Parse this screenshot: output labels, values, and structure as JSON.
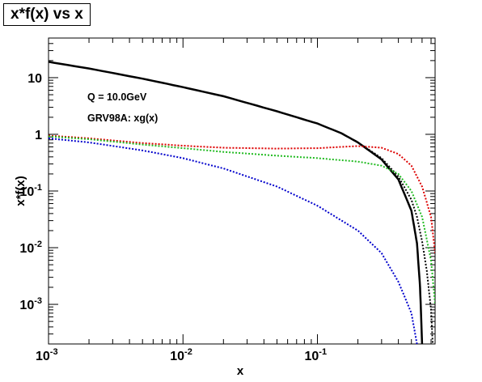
{
  "chart_data": {
    "type": "line",
    "title": "x*f(x) vs x",
    "xlabel": "x",
    "ylabel": "x*f(x)",
    "xscale": "log",
    "yscale": "log",
    "xlim": [
      0.001,
      0.75
    ],
    "ylim": [
      0.0002,
      50
    ],
    "grid": false,
    "legend": "none",
    "x_ticks": [
      {
        "base": "10",
        "exp": "-3",
        "value": 0.001
      },
      {
        "base": "10",
        "exp": "-2",
        "value": 0.01
      },
      {
        "base": "10",
        "exp": "-1",
        "value": 0.1
      }
    ],
    "y_ticks": [
      {
        "base": "10",
        "exp": "-3",
        "value": 0.001
      },
      {
        "base": "10",
        "exp": "-2",
        "value": 0.01
      },
      {
        "base": "10",
        "exp": "-1",
        "value": 0.1
      },
      {
        "base": "1",
        "exp": "",
        "value": 1
      },
      {
        "base": "10",
        "exp": "",
        "value": 10
      }
    ],
    "annotations": [
      "Q = 10.0GeV",
      "GRV98A: xg(x)"
    ],
    "series": [
      {
        "color": "#000000",
        "style": "solid",
        "points": [
          [
            0.001,
            19
          ],
          [
            0.002,
            14.5
          ],
          [
            0.005,
            9.6
          ],
          [
            0.01,
            6.8
          ],
          [
            0.02,
            4.7
          ],
          [
            0.05,
            2.55
          ],
          [
            0.1,
            1.55
          ],
          [
            0.15,
            1.05
          ],
          [
            0.2,
            0.72
          ],
          [
            0.3,
            0.36
          ],
          [
            0.4,
            0.16
          ],
          [
            0.5,
            0.045
          ],
          [
            0.55,
            0.012
          ],
          [
            0.58,
            0.002
          ],
          [
            0.6,
            0.0002
          ]
        ]
      },
      {
        "color": "#000000",
        "style": "dotted",
        "points": [
          [
            0.2,
            0.72
          ],
          [
            0.3,
            0.38
          ],
          [
            0.4,
            0.18
          ],
          [
            0.5,
            0.07
          ],
          [
            0.55,
            0.035
          ],
          [
            0.6,
            0.013
          ],
          [
            0.65,
            0.004
          ],
          [
            0.7,
            0.0008
          ],
          [
            0.72,
            0.0002
          ]
        ]
      },
      {
        "color": "#dd0000",
        "style": "dotted",
        "points": [
          [
            0.001,
            0.95
          ],
          [
            0.002,
            0.85
          ],
          [
            0.005,
            0.7
          ],
          [
            0.01,
            0.63
          ],
          [
            0.02,
            0.58
          ],
          [
            0.05,
            0.56
          ],
          [
            0.1,
            0.57
          ],
          [
            0.15,
            0.6
          ],
          [
            0.2,
            0.62
          ],
          [
            0.3,
            0.58
          ],
          [
            0.4,
            0.45
          ],
          [
            0.5,
            0.28
          ],
          [
            0.6,
            0.12
          ],
          [
            0.7,
            0.035
          ],
          [
            0.75,
            0.008
          ]
        ]
      },
      {
        "color": "#22bb22",
        "style": "dotted",
        "points": [
          [
            0.001,
            0.92
          ],
          [
            0.002,
            0.82
          ],
          [
            0.005,
            0.66
          ],
          [
            0.01,
            0.57
          ],
          [
            0.02,
            0.49
          ],
          [
            0.05,
            0.42
          ],
          [
            0.1,
            0.38
          ],
          [
            0.15,
            0.35
          ],
          [
            0.2,
            0.33
          ],
          [
            0.3,
            0.28
          ],
          [
            0.4,
            0.2
          ],
          [
            0.5,
            0.1
          ],
          [
            0.6,
            0.035
          ],
          [
            0.7,
            0.006
          ],
          [
            0.75,
            0.001
          ]
        ]
      },
      {
        "color": "#0000cc",
        "style": "dotted",
        "points": [
          [
            0.001,
            0.85
          ],
          [
            0.002,
            0.72
          ],
          [
            0.005,
            0.52
          ],
          [
            0.01,
            0.38
          ],
          [
            0.02,
            0.25
          ],
          [
            0.05,
            0.12
          ],
          [
            0.1,
            0.055
          ],
          [
            0.2,
            0.02
          ],
          [
            0.3,
            0.008
          ],
          [
            0.4,
            0.0025
          ],
          [
            0.5,
            0.0007
          ],
          [
            0.55,
            0.0002
          ]
        ]
      }
    ]
  }
}
